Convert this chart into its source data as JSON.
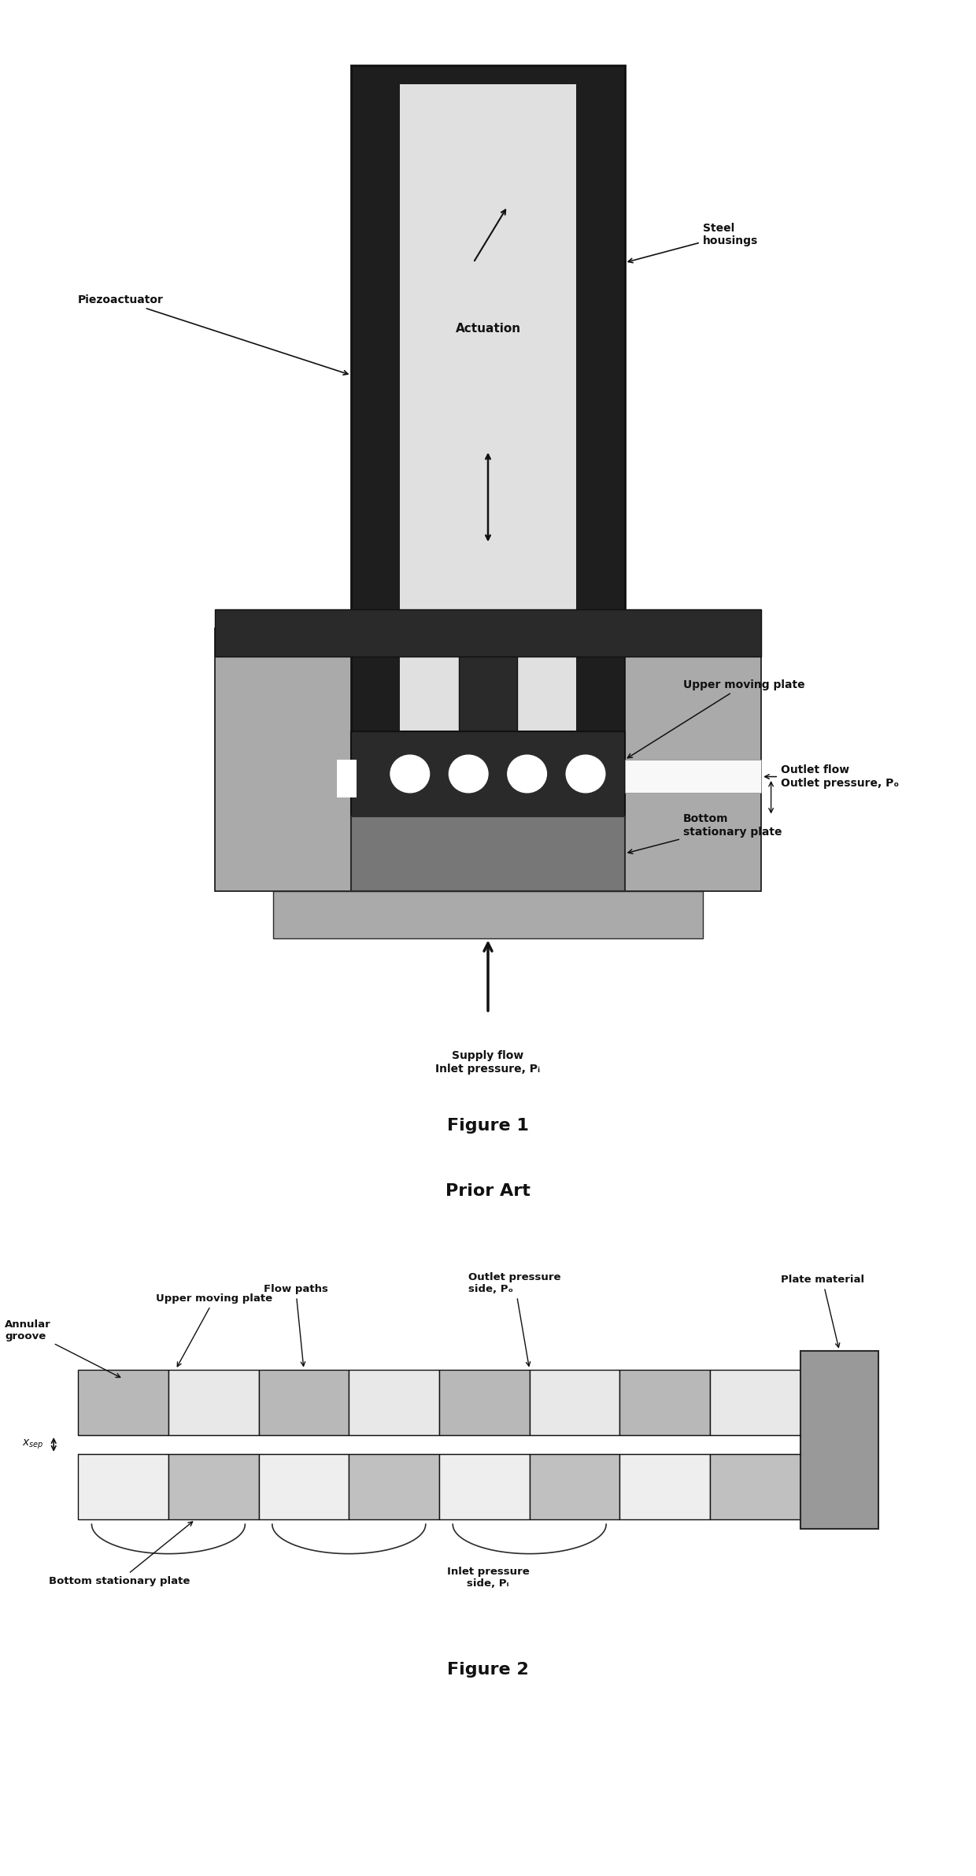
{
  "fig1_title": "Figure 1",
  "fig2_title": "Figure 2",
  "prior_art_label": "Prior Art",
  "background_color": "#ffffff",
  "colors": {
    "black": "#111111",
    "dark_gray": "#2a2a2a",
    "medium_gray": "#888888",
    "light_gray": "#bbbbbb",
    "very_light_gray": "#e0e0e0",
    "white": "#ffffff",
    "housing_dark": "#1e1e1e",
    "side_gray": "#aaaaaa",
    "bottom_plate_dark": "#777777",
    "outlet_white": "#f8f8f8",
    "gap_white": "#f0f0f0",
    "fig2_upper_dark": "#b8b8b8",
    "fig2_upper_light": "#e8e8e8",
    "fig2_lower_dark": "#c0c0c0",
    "fig2_lower_light": "#eeeeee",
    "fig2_plate_mat": "#999999"
  },
  "annotations_fig1": {
    "piezoactuator": "Piezoactuator",
    "steel_housings": "Steel\nhousings",
    "actuation": "Actuation",
    "upper_moving_plate": "Upper moving plate",
    "outlet_flow": "Outlet flow\nOutlet pressure, Pₒ",
    "bottom_stationary_plate": "Bottom\nstationary plate",
    "supply_flow": "Supply flow\nInlet pressure, Pᵢ"
  },
  "annotations_fig2": {
    "upper_moving_plate": "Upper moving plate",
    "annular_groove": "Annular\ngroove",
    "flow_paths": "Flow paths",
    "outlet_pressure": "Outlet pressure\nside, Pₒ",
    "plate_material": "Plate material",
    "bottom_stationary_plate": "Bottom stationary plate",
    "inlet_pressure": "Inlet pressure\nside, Pᵢ",
    "xsep": "x_sep"
  }
}
